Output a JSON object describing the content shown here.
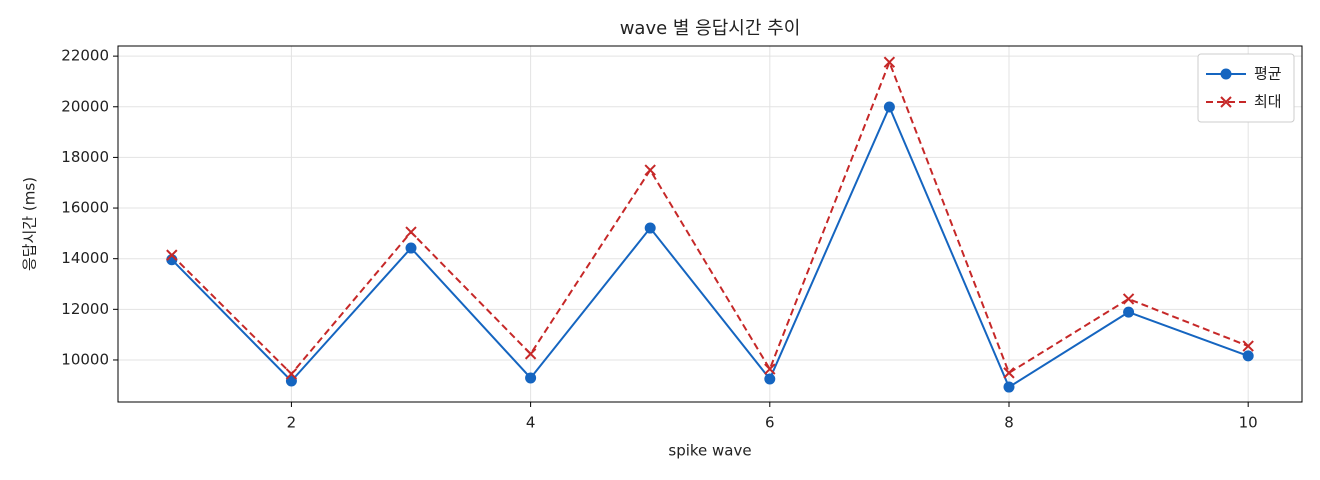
{
  "chart_data": {
    "type": "line",
    "title": "wave 별 응답시간 추이",
    "xlabel": "spike wave",
    "ylabel": "응답시간 (ms)",
    "x": [
      1,
      2,
      3,
      4,
      5,
      6,
      7,
      8,
      9,
      10
    ],
    "series": [
      {
        "name": "평균",
        "color": "#1565c0",
        "marker": "circle",
        "dash": "solid",
        "values": [
          13960,
          9170,
          14420,
          9290,
          15210,
          9250,
          19990,
          8930,
          11890,
          10160
        ]
      },
      {
        "name": "최대",
        "color": "#c62828",
        "marker": "x",
        "dash": "dashed",
        "values": [
          14140,
          9450,
          15050,
          10240,
          17500,
          9640,
          21760,
          9490,
          12410,
          10550
        ]
      }
    ],
    "xlim": [
      0.55,
      10.45
    ],
    "ylim": [
      8340,
      22400
    ],
    "xticks": [
      2,
      4,
      6,
      8,
      10
    ],
    "yticks": [
      10000,
      12000,
      14000,
      16000,
      18000,
      20000,
      22000
    ],
    "grid": true,
    "legend": "upper right"
  }
}
